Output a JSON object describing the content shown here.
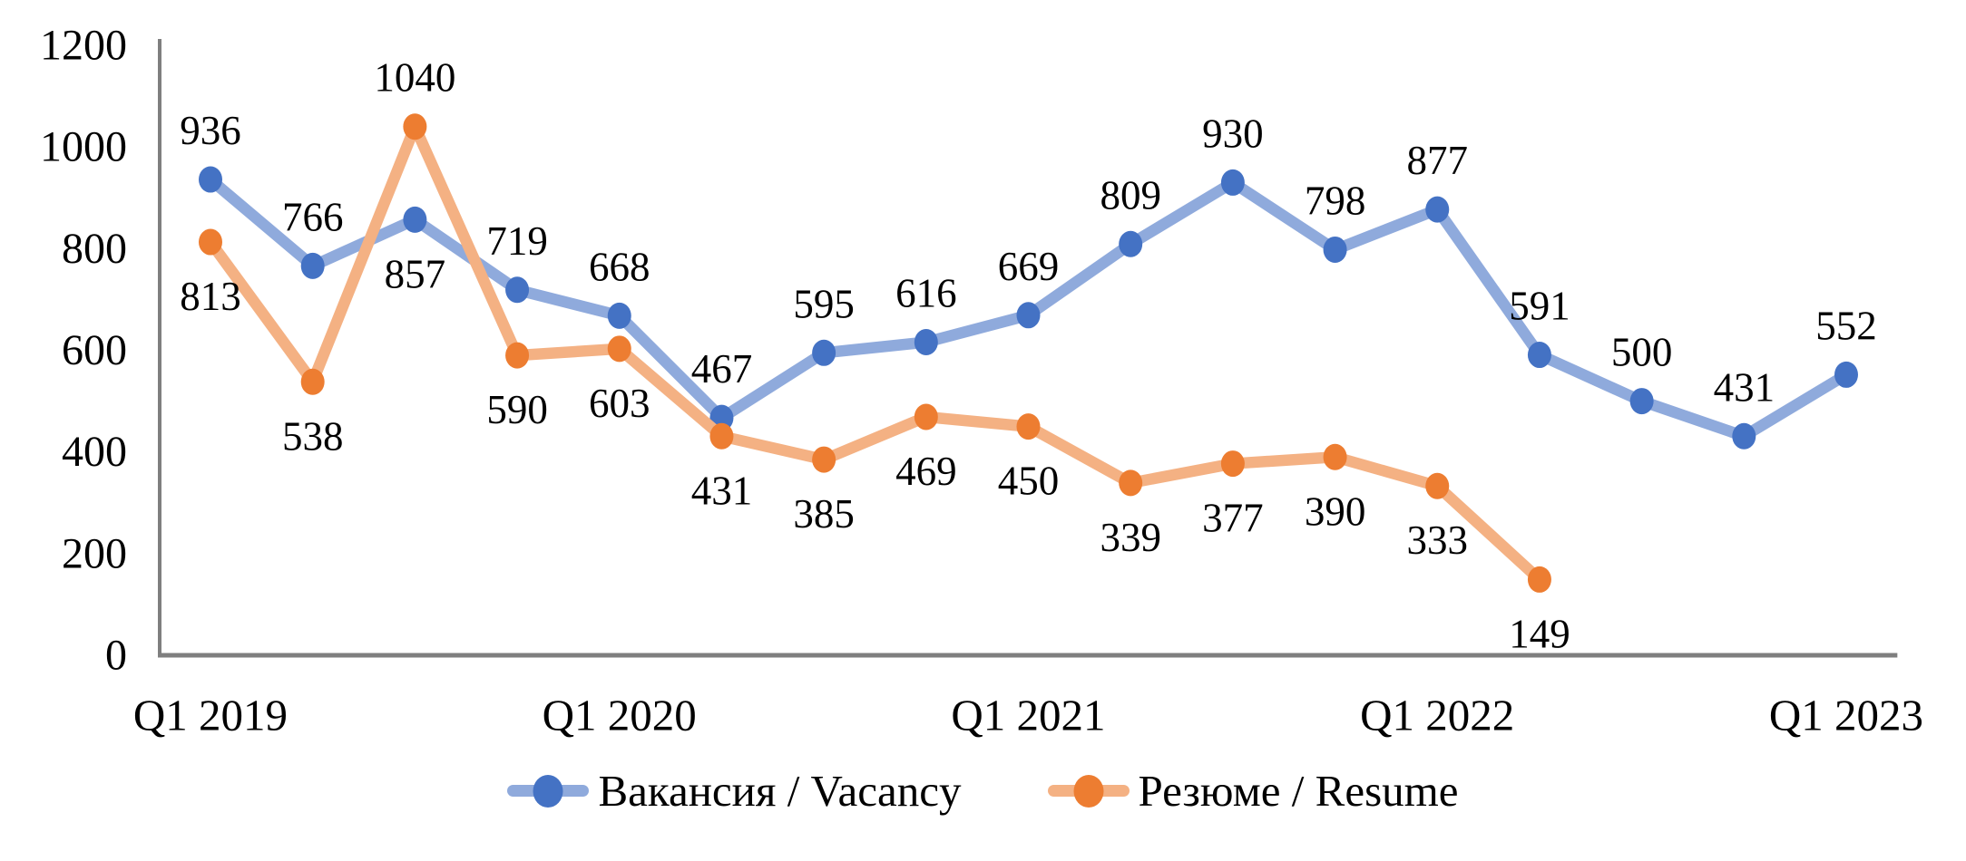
{
  "chart_data": {
    "type": "line",
    "title": "",
    "xlabel": "",
    "ylabel": "",
    "n_points": 17,
    "x_axis": {
      "tick_labels": [
        "Q1 2019",
        "Q1 2020",
        "Q1 2021",
        "Q1 2022",
        "Q1 2023"
      ],
      "tick_point_indexes": [
        0,
        4,
        8,
        12,
        16
      ]
    },
    "y_axis": {
      "min": 0,
      "max": 1200,
      "step": 200,
      "tick_labels": [
        "0",
        "200",
        "400",
        "600",
        "800",
        "1000",
        "1200"
      ]
    },
    "grid": false,
    "legend_position": "bottom",
    "colors": {
      "vacancy_line": "#8FAADC",
      "vacancy_marker": "#4472C4",
      "resume_line": "#F4B183",
      "resume_marker": "#ED7D31",
      "axis": "#7F7F7F",
      "label_text": "#000000"
    },
    "series": [
      {
        "name": "Вакансия / Vacancy",
        "line_color": "#8FAADC",
        "marker_color": "#4472C4",
        "values": [
          936,
          766,
          857,
          719,
          668,
          467,
          595,
          616,
          669,
          809,
          930,
          798,
          877,
          591,
          500,
          431,
          552
        ],
        "data_labels": [
          "936",
          "766",
          "857",
          "719",
          "668",
          "467",
          "595",
          "616",
          "669",
          "809",
          "930",
          "798",
          "877",
          "591",
          "500",
          "431",
          "552"
        ],
        "label_default_placement": "above",
        "label_placement_exceptions": {
          "2": "below"
        }
      },
      {
        "name": "Резюме / Resume",
        "line_color": "#F4B183",
        "marker_color": "#ED7D31",
        "values": [
          813,
          538,
          1040,
          590,
          603,
          431,
          385,
          469,
          450,
          339,
          377,
          390,
          333,
          149
        ],
        "data_labels": [
          "813",
          "538",
          "1040",
          "590",
          "603",
          "431",
          "385",
          "469",
          "450",
          "339",
          "377",
          "390",
          "333",
          "149"
        ],
        "label_default_placement": "below",
        "label_placement_exceptions": {
          "2": "above"
        }
      }
    ]
  }
}
